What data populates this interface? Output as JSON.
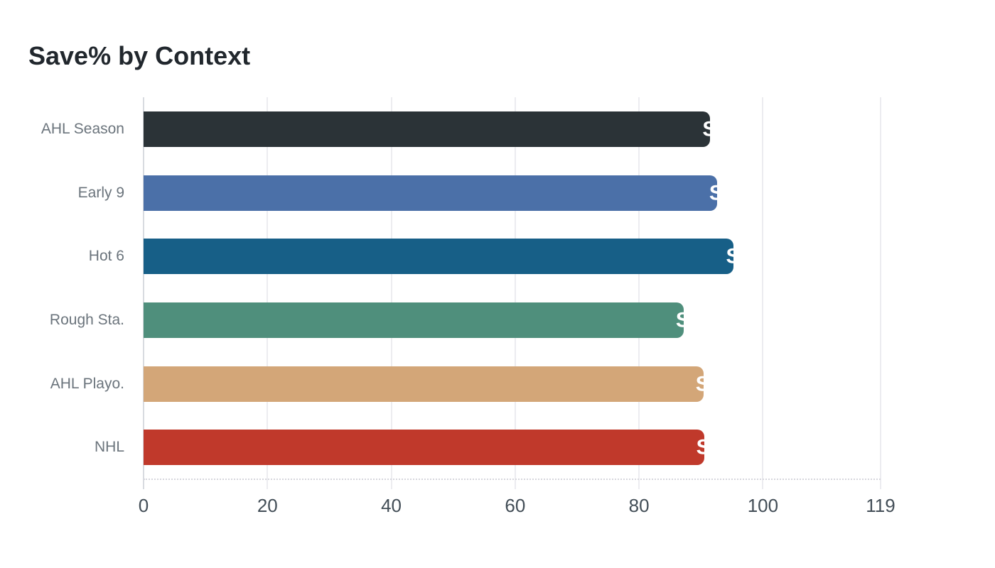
{
  "title": "Save% by Context",
  "chart_data": {
    "type": "bar",
    "orientation": "horizontal",
    "title": "Save% by Context",
    "categories": [
      "AHL Season",
      "Early 9",
      "Hot 6",
      "Rough Sta.",
      "AHL Playo.",
      "NHL"
    ],
    "values": [
      91.5,
      92.6,
      95.3,
      87.2,
      90.4,
      90.5
    ],
    "bar_colors": [
      "#2b3337",
      "#4b70a8",
      "#175f87",
      "#4f8f7c",
      "#d3a678",
      "#c0392b"
    ],
    "x_ticks": [
      "0",
      "20",
      "40",
      "60",
      "80",
      "100",
      "119"
    ],
    "x_tick_values": [
      0,
      20,
      40,
      60,
      80,
      100,
      119
    ],
    "xlim": [
      0,
      119
    ],
    "xlabel": "",
    "ylabel": "",
    "grid": "vertical-gridlines",
    "legend": "none",
    "value_label_fragment": "S",
    "value_label_color": "#ffffff"
  },
  "colors": {
    "background": "#ffffff",
    "title_text": "#21272d",
    "tick_label": "#434e57",
    "category_label": "#6b747c",
    "gridline": "#ececf0",
    "axis_line": "#d8dbe0",
    "dotted_baseline": "#d6d6dd"
  }
}
